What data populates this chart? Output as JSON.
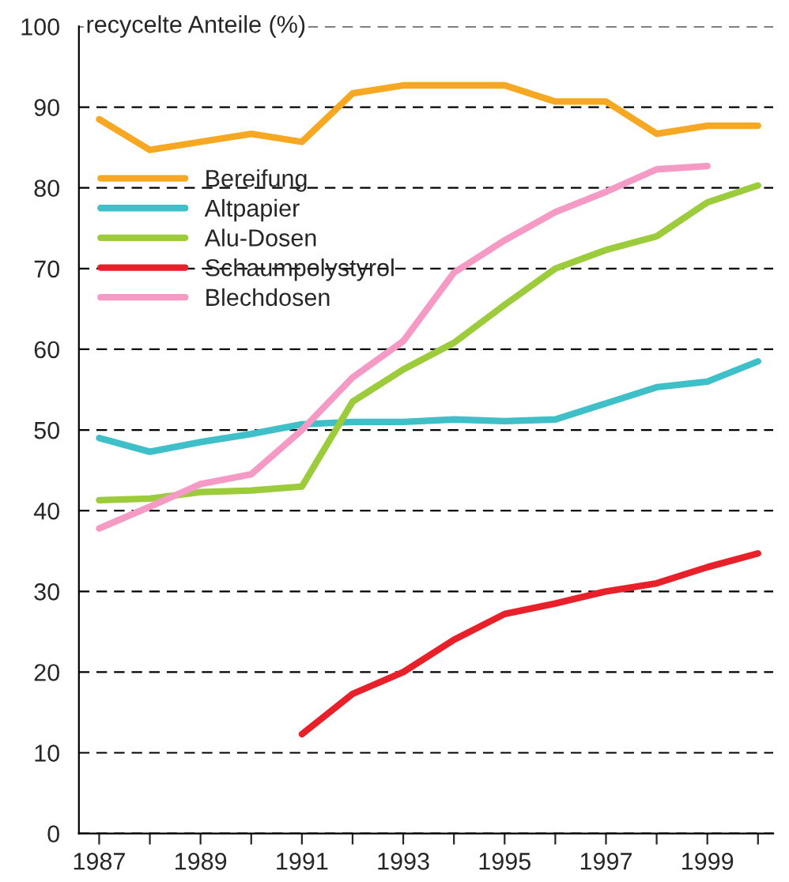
{
  "chart_data": {
    "type": "line",
    "ylabel": "recycelte Anteile (%)",
    "x": [
      1987,
      1988,
      1989,
      1990,
      1991,
      1992,
      1993,
      1994,
      1995,
      1996,
      1997,
      1998,
      1999,
      2000
    ],
    "series": [
      {
        "name": "Bereifung",
        "color": "#f7a823",
        "values": [
          88.5,
          84.7,
          85.7,
          86.7,
          85.7,
          91.7,
          92.7,
          92.7,
          92.7,
          90.7,
          90.7,
          86.7,
          87.7,
          87.7
        ]
      },
      {
        "name": "Altpapier",
        "color": "#3fbfc8",
        "values": [
          49,
          47.3,
          48.5,
          49.5,
          50.7,
          51,
          51,
          51.3,
          51.1,
          51.3,
          53.3,
          55.3,
          56,
          58.5
        ]
      },
      {
        "name": "Alu-Dosen",
        "color": "#9ccb3b",
        "values": [
          41.3,
          41.5,
          42.3,
          42.5,
          43,
          53.5,
          57.5,
          60.8,
          65.5,
          70,
          72.3,
          74,
          78.2,
          80.3
        ]
      },
      {
        "name": "Schaumpolystyrol",
        "color": "#e8202a",
        "values": [
          null,
          null,
          null,
          null,
          12.3,
          17.3,
          20,
          24,
          27.2,
          28.5,
          30,
          31,
          33,
          34.7
        ]
      },
      {
        "name": "Blechdosen",
        "color": "#f49ac4",
        "values": [
          37.8,
          40.5,
          43.3,
          44.5,
          50,
          56.5,
          61,
          69.5,
          73.5,
          77,
          79.5,
          82.3,
          82.7,
          null
        ]
      }
    ],
    "xlim": [
      1986.6,
      2000.3
    ],
    "xticks": [
      1987,
      {
        "value": 1988,
        "label": null
      },
      1989,
      {
        "value": 1990,
        "label": null
      },
      1991,
      {
        "value": 1992,
        "label": null
      },
      1993,
      {
        "value": 1994,
        "label": null
      },
      1995,
      {
        "value": 1996,
        "label": null
      },
      1997,
      {
        "value": 1998,
        "label": null
      },
      1999,
      {
        "value": 2000,
        "label": null
      }
    ],
    "ylim": [
      0,
      100
    ],
    "yticks": [
      0,
      10,
      20,
      30,
      40,
      50,
      60,
      70,
      80,
      90,
      100
    ],
    "grid": "y",
    "legend": "top left",
    "marker": "none",
    "line_style": "solid"
  }
}
